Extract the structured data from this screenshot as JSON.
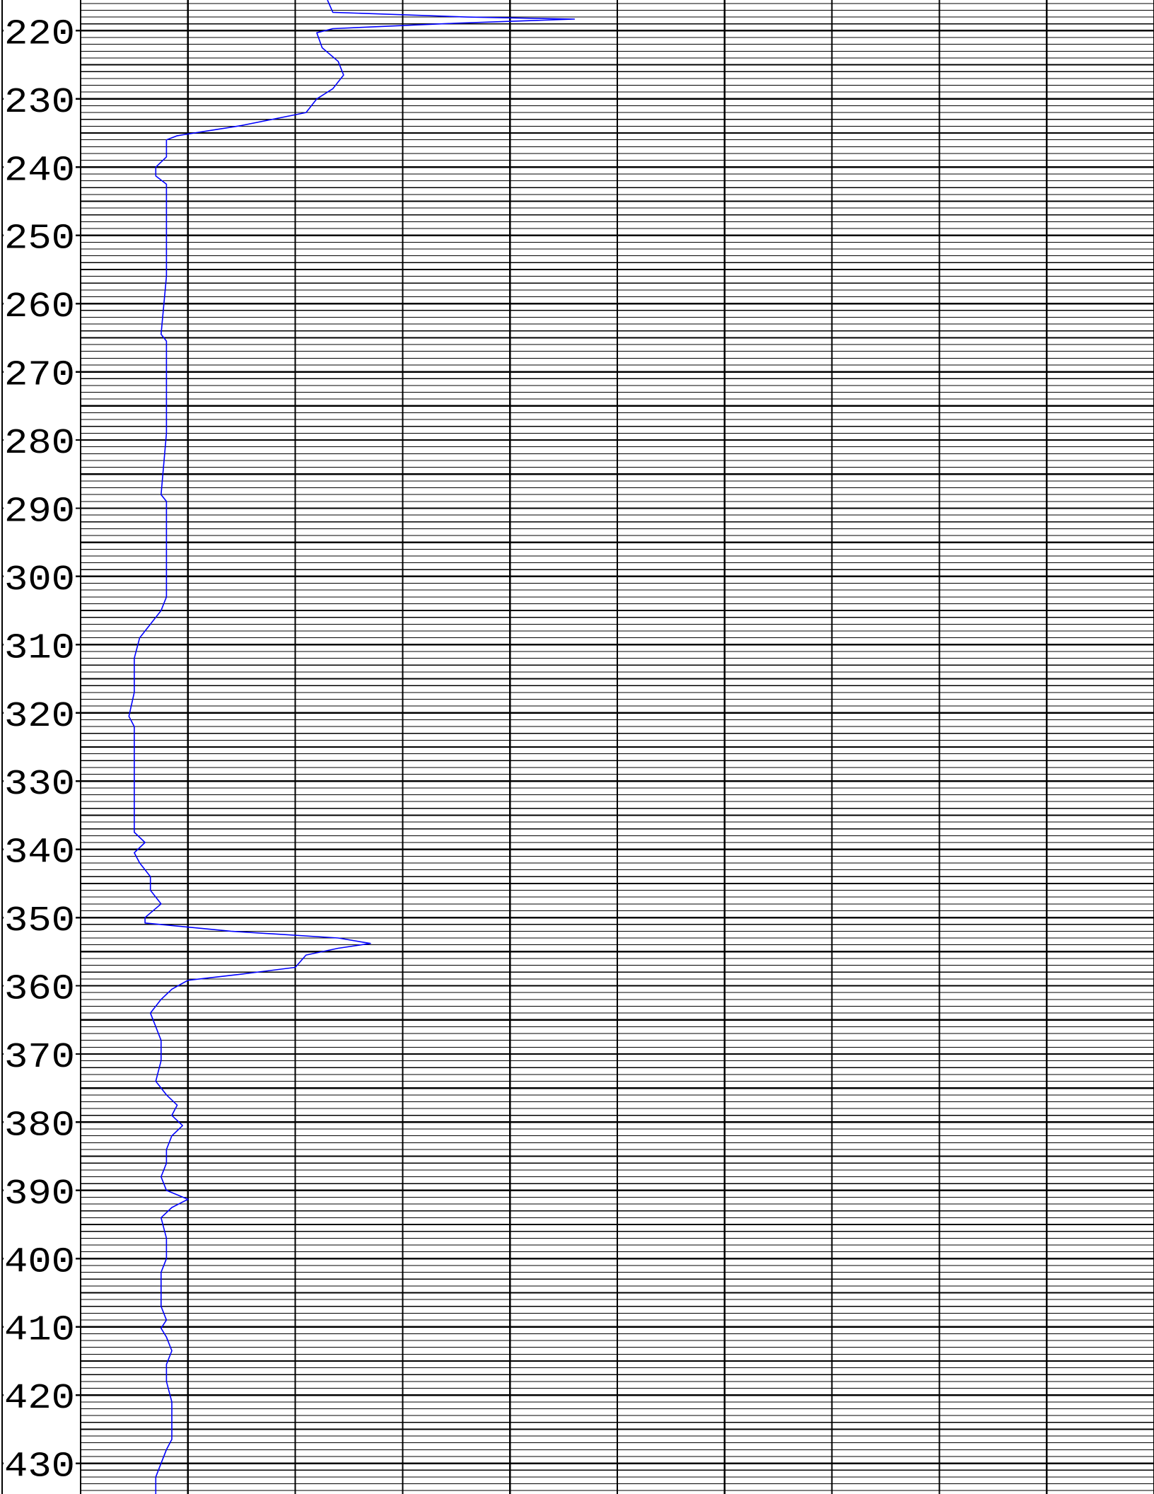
{
  "chart_data": {
    "type": "line",
    "title": "",
    "xlabel": "",
    "ylabel": "",
    "y_axis": "depth",
    "y_inverted": true,
    "ylim": [
      215.5,
      434.5
    ],
    "xlim": [
      0,
      10
    ],
    "x_major_divisions": 10,
    "depth_minor_step": 1,
    "depth_major_step": 5,
    "grid": true,
    "tick_labels": [
      "220",
      "230",
      "240",
      "250",
      "260",
      "270",
      "280",
      "290",
      "300",
      "310",
      "320",
      "330",
      "340",
      "350",
      "360",
      "370",
      "380",
      "390",
      "400",
      "410",
      "420",
      "430"
    ],
    "colors": {
      "curve": "#0000ff",
      "grid": "#000000",
      "background": "#ffffff"
    },
    "series": [
      {
        "color": "#0000ff",
        "points": [
          [
            2.3,
            215.5
          ],
          [
            2.35,
            217.3
          ],
          [
            3.6,
            218
          ],
          [
            4.6,
            218.3
          ],
          [
            3.5,
            218.9
          ],
          [
            2.35,
            219.7
          ],
          [
            2.2,
            220.3
          ],
          [
            2.25,
            222.5
          ],
          [
            2.4,
            224.5
          ],
          [
            2.45,
            226.5
          ],
          [
            2.35,
            228.5
          ],
          [
            2.2,
            230
          ],
          [
            2.1,
            232
          ],
          [
            1.5,
            233.9
          ],
          [
            0.9,
            235.4
          ],
          [
            0.8,
            236
          ],
          [
            0.8,
            238.5
          ],
          [
            0.7,
            240
          ],
          [
            0.7,
            241.3
          ],
          [
            0.8,
            242.5
          ],
          [
            0.8,
            252
          ],
          [
            0.8,
            256
          ],
          [
            0.75,
            264.5
          ],
          [
            0.8,
            265.5
          ],
          [
            0.8,
            279
          ],
          [
            0.75,
            288
          ],
          [
            0.8,
            289
          ],
          [
            0.8,
            298.5
          ],
          [
            0.8,
            303
          ],
          [
            0.75,
            305
          ],
          [
            0.65,
            307
          ],
          [
            0.55,
            309
          ],
          [
            0.5,
            312
          ],
          [
            0.5,
            317
          ],
          [
            0.45,
            320.5
          ],
          [
            0.5,
            322
          ],
          [
            0.5,
            326
          ],
          [
            0.5,
            329
          ],
          [
            0.5,
            337.5
          ],
          [
            0.6,
            339
          ],
          [
            0.5,
            340.5
          ],
          [
            0.55,
            342
          ],
          [
            0.65,
            344
          ],
          [
            0.65,
            346
          ],
          [
            0.75,
            348
          ],
          [
            0.6,
            350
          ],
          [
            0.6,
            350.8
          ],
          [
            1.4,
            352
          ],
          [
            2.4,
            353
          ],
          [
            2.7,
            353.8
          ],
          [
            2.4,
            354.5
          ],
          [
            2.1,
            355.5
          ],
          [
            2.0,
            357.3
          ],
          [
            1.5,
            358.3
          ],
          [
            1.0,
            359.2
          ],
          [
            0.85,
            360.5
          ],
          [
            0.75,
            362
          ],
          [
            0.65,
            364
          ],
          [
            0.7,
            366
          ],
          [
            0.75,
            368
          ],
          [
            0.75,
            371
          ],
          [
            0.7,
            374
          ],
          [
            0.8,
            376
          ],
          [
            0.9,
            377.5
          ],
          [
            0.85,
            379
          ],
          [
            0.95,
            380.5
          ],
          [
            0.85,
            382
          ],
          [
            0.8,
            384
          ],
          [
            0.8,
            386
          ],
          [
            0.75,
            388
          ],
          [
            0.8,
            390
          ],
          [
            1.0,
            391.3
          ],
          [
            0.85,
            392.5
          ],
          [
            0.75,
            394
          ],
          [
            0.8,
            397
          ],
          [
            0.8,
            400
          ],
          [
            0.75,
            402
          ],
          [
            0.75,
            404
          ],
          [
            0.75,
            407
          ],
          [
            0.8,
            409
          ],
          [
            0.75,
            410.2
          ],
          [
            0.8,
            411.5
          ],
          [
            0.85,
            413.5
          ],
          [
            0.8,
            415.5
          ],
          [
            0.8,
            418
          ],
          [
            0.85,
            421
          ],
          [
            0.85,
            424.5
          ],
          [
            0.85,
            426.5
          ],
          [
            0.8,
            428
          ],
          [
            0.75,
            430
          ],
          [
            0.7,
            432
          ],
          [
            0.7,
            434.5
          ]
        ]
      }
    ]
  }
}
